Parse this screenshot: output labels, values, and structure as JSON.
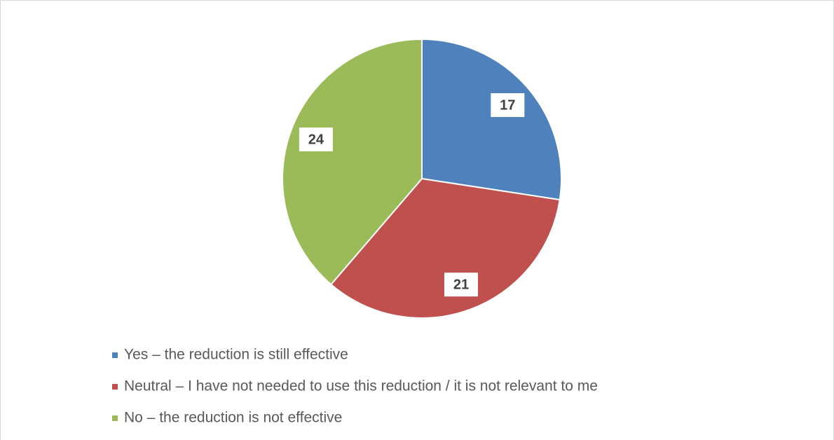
{
  "chart_data": {
    "type": "pie",
    "categories": [
      "Yes – the reduction is still effective",
      "Neutral – I have not needed to use this reduction / it is not relevant to me",
      "No – the reduction is not effective"
    ],
    "values": [
      17,
      21,
      24
    ],
    "colors": [
      "#4f81bd",
      "#c0504d",
      "#9bbb59"
    ],
    "legend": "bottom"
  }
}
